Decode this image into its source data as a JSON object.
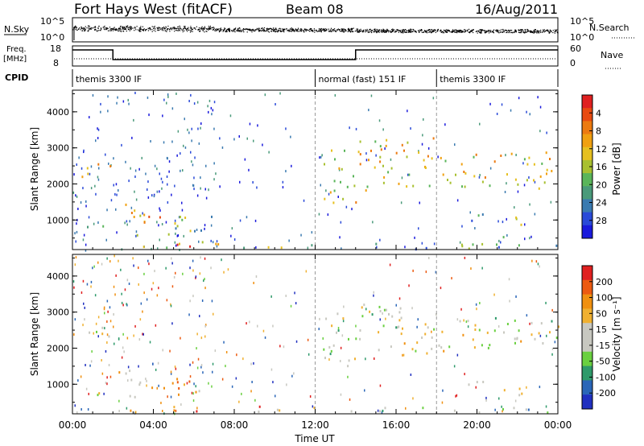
{
  "header": {
    "title": "Fort Hays West (fitACF)",
    "beam": "Beam 08",
    "date": "16/Aug/2011"
  },
  "top_panels": {
    "nsky_label": "N.Sky",
    "nsky_ticks": [
      "10^5",
      "10^0"
    ],
    "nsky_right_ticks": [
      "10^5",
      "10^0"
    ],
    "nsearch_label": "N.Search",
    "freq_label": "Freq.",
    "freq_unit": "[MHz]",
    "freq_ticks": [
      "18",
      "8"
    ],
    "nave_ticks": [
      "60",
      "0"
    ],
    "nave_label": "Nave",
    "cpid_label": "CPID",
    "cpid_segments": [
      {
        "label": "themis 3300 IF",
        "start_h": 0,
        "end_h": 12
      },
      {
        "label": "normal (fast) 151 IF",
        "start_h": 12,
        "end_h": 18
      },
      {
        "label": "themis 3300 IF",
        "start_h": 18,
        "end_h": 24
      }
    ],
    "freq_steps": [
      {
        "start_h": 0,
        "end_h": 2,
        "level": "high"
      },
      {
        "start_h": 2,
        "end_h": 14,
        "level": "low"
      },
      {
        "start_h": 14,
        "end_h": 24,
        "level": "high"
      }
    ]
  },
  "chart_data": [
    {
      "type": "heatmap",
      "title": "Power",
      "ylabel": "Slant Range [km]",
      "xlabel": "Time UT",
      "ylim": [
        180,
        4600
      ],
      "xlim": [
        0,
        24
      ],
      "y_ticks": [
        "1000",
        "2000",
        "3000",
        "4000"
      ],
      "y_tick_values": [
        1000,
        2000,
        3000,
        4000
      ],
      "x_tick_values": [
        0,
        4,
        8,
        12,
        16,
        20,
        24
      ],
      "colorbar_label": "Power [dB]",
      "colorbar_ticks": [
        "4",
        "8",
        "12",
        "16",
        "20",
        "24",
        "28"
      ],
      "colorbar_colors": [
        "#1a1adc",
        "#2a4ad8",
        "#3a7ab0",
        "#4a9a7a",
        "#5ab55a",
        "#a8c030",
        "#e6c020",
        "#f0a010",
        "#ec7a10",
        "#e84a10",
        "#e02020"
      ],
      "regions": [
        {
          "t0": 0.1,
          "t1": 2.0,
          "r0": 2150,
          "r1": 2600,
          "level": 0.6
        },
        {
          "t0": 0.3,
          "t1": 1.5,
          "r0": 700,
          "r1": 950,
          "level": 0.5
        },
        {
          "t0": 1.9,
          "t1": 3.9,
          "r0": 1150,
          "r1": 1500,
          "level": 0.8
        },
        {
          "t0": 2.8,
          "t1": 5.5,
          "r0": 600,
          "r1": 1200,
          "level": 0.65
        },
        {
          "t0": 5.0,
          "t1": 7.0,
          "r0": 700,
          "r1": 1300,
          "level": 0.35
        },
        {
          "t0": 2.6,
          "t1": 12.0,
          "r0": 250,
          "r1": 420,
          "level": 0.5
        },
        {
          "t0": 4.5,
          "t1": 6.2,
          "r0": 250,
          "r1": 420,
          "level": 0.95
        },
        {
          "t0": 12.3,
          "t1": 14.0,
          "r0": 1500,
          "r1": 3100,
          "level": 0.55
        },
        {
          "t0": 14.0,
          "t1": 18.0,
          "r0": 1800,
          "r1": 3300,
          "level": 0.6
        },
        {
          "t0": 18.0,
          "t1": 24.0,
          "r0": 1900,
          "r1": 2900,
          "level": 0.6
        },
        {
          "t0": 19.5,
          "t1": 21.0,
          "r0": 1000,
          "r1": 1300,
          "level": 0.15
        },
        {
          "t0": 21.2,
          "t1": 22.3,
          "r0": 550,
          "r1": 1100,
          "level": 0.5
        },
        {
          "t0": 12.0,
          "t1": 24.0,
          "r0": 220,
          "r1": 380,
          "level": 0.3
        }
      ]
    },
    {
      "type": "heatmap",
      "title": "Velocity",
      "ylabel": "Slant Range [km]",
      "xlabel": "Time UT",
      "ylim": [
        180,
        4600
      ],
      "xlim": [
        0,
        24
      ],
      "y_ticks": [
        "1000",
        "2000",
        "3000",
        "4000"
      ],
      "y_tick_values": [
        1000,
        2000,
        3000,
        4000
      ],
      "x_ticks": [
        "00:00",
        "04:00",
        "08:00",
        "12:00",
        "16:00",
        "20:00",
        "00:00"
      ],
      "x_tick_values": [
        0,
        4,
        8,
        12,
        16,
        20,
        24
      ],
      "colorbar_label": "Velocity [m s⁻¹]",
      "colorbar_ticks": [
        "200",
        "100",
        "50",
        "15",
        "-15",
        "-50",
        "-100",
        "-200"
      ],
      "colorbar_colors": [
        "#2030c0",
        "#2a66b8",
        "#2e9a6a",
        "#6ad040",
        "#c8c8c0",
        "#c8c8c0",
        "#f0b030",
        "#f09010",
        "#ec5a10",
        "#e02020"
      ],
      "regions": [
        {
          "t0": 0.1,
          "t1": 2.0,
          "r0": 2150,
          "r1": 2600,
          "level": 0.5
        },
        {
          "t0": 0.3,
          "t1": 1.5,
          "r0": 700,
          "r1": 950,
          "level": 0.5
        },
        {
          "t0": 1.9,
          "t1": 3.9,
          "r0": 1150,
          "r1": 1500,
          "level": 0.5
        },
        {
          "t0": 2.8,
          "t1": 6.8,
          "r0": 600,
          "r1": 1200,
          "level": 0.65
        },
        {
          "t0": 2.6,
          "t1": 12.0,
          "r0": 250,
          "r1": 420,
          "level": 0.8
        },
        {
          "t0": 12.3,
          "t1": 14.0,
          "r0": 1500,
          "r1": 3100,
          "level": 0.45
        },
        {
          "t0": 14.0,
          "t1": 18.0,
          "r0": 1800,
          "r1": 3300,
          "level": 0.5
        },
        {
          "t0": 18.0,
          "t1": 24.0,
          "r0": 1900,
          "r1": 2900,
          "level": 0.5
        },
        {
          "t0": 19.5,
          "t1": 21.0,
          "r0": 1000,
          "r1": 1300,
          "level": 0.5
        },
        {
          "t0": 21.2,
          "t1": 22.3,
          "r0": 550,
          "r1": 1100,
          "level": 0.5
        },
        {
          "t0": 12.0,
          "t1": 24.0,
          "r0": 220,
          "r1": 380,
          "level": 0.35
        }
      ]
    }
  ]
}
